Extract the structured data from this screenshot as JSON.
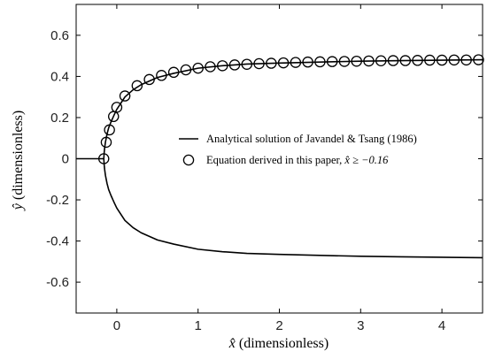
{
  "chart_data": {
    "type": "line",
    "title": "",
    "xlabel": {
      "symbol": "x̂",
      "text": " (dimensionless)"
    },
    "ylabel": {
      "symbol": "ŷ",
      "text": " (dimensionless)"
    },
    "xlim": [
      -0.5,
      4.5
    ],
    "ylim": [
      -0.75,
      0.75
    ],
    "x_ticks": [
      0,
      1,
      2,
      3,
      4
    ],
    "x_tick_labels": [
      "0",
      "1",
      "2",
      "3",
      "4"
    ],
    "y_ticks": [
      0.6,
      0.4,
      0.2,
      0,
      -0.2,
      -0.4,
      -0.6
    ],
    "y_tick_labels": [
      "0.6",
      "0.4",
      "0.2",
      "0",
      "-0.2",
      "-0.4",
      "-0.6"
    ],
    "grid": false,
    "legend_position": "right, middle",
    "series": [
      {
        "name": "Analytical solution of Javandel & Tsang (1986)",
        "style": "line",
        "color": "#000000",
        "branches": [
          {
            "x": [
              -0.5,
              -0.16
            ],
            "y": [
              0,
              0
            ]
          },
          {
            "x": [
              -0.16,
              -0.155,
              -0.15,
              -0.14,
              -0.12,
              -0.1,
              -0.07,
              -0.03,
              0.0,
              0.05,
              0.1,
              0.2,
              0.3,
              0.5,
              0.7,
              1.0,
              1.3,
              1.6,
              2.0,
              2.5,
              3.0,
              3.5,
              4.0,
              4.5
            ],
            "y": [
              0,
              0.03,
              0.05,
              0.08,
              0.12,
              0.15,
              0.18,
              0.215,
              0.24,
              0.27,
              0.3,
              0.335,
              0.36,
              0.395,
              0.415,
              0.44,
              0.452,
              0.46,
              0.465,
              0.47,
              0.474,
              0.477,
              0.479,
              0.481
            ]
          },
          {
            "x": [
              -0.16,
              -0.155,
              -0.15,
              -0.14,
              -0.12,
              -0.1,
              -0.07,
              -0.03,
              0.0,
              0.05,
              0.1,
              0.2,
              0.3,
              0.5,
              0.7,
              1.0,
              1.3,
              1.6,
              2.0,
              2.5,
              3.0,
              3.5,
              4.0,
              4.5
            ],
            "y": [
              0,
              -0.03,
              -0.05,
              -0.08,
              -0.12,
              -0.15,
              -0.18,
              -0.215,
              -0.24,
              -0.27,
              -0.3,
              -0.335,
              -0.36,
              -0.395,
              -0.415,
              -0.44,
              -0.452,
              -0.46,
              -0.465,
              -0.47,
              -0.474,
              -0.477,
              -0.479,
              -0.481
            ]
          }
        ]
      },
      {
        "name_parts": {
          "before": "Equation derived in this paper, ",
          "math": "x̂ ≥ −0.16"
        },
        "style": "marker",
        "marker": "open-circle",
        "color": "#000000",
        "x": [
          -0.16,
          -0.13,
          -0.09,
          -0.04,
          0.0,
          0.1,
          0.25,
          0.4,
          0.55,
          0.7,
          0.85,
          1.0,
          1.15,
          1.3,
          1.45,
          1.6,
          1.75,
          1.9,
          2.05,
          2.2,
          2.35,
          2.5,
          2.65,
          2.8,
          2.95,
          3.1,
          3.25,
          3.4,
          3.55,
          3.7,
          3.85,
          4.0,
          4.15,
          4.3,
          4.45
        ],
        "y": [
          0,
          0.08,
          0.14,
          0.205,
          0.25,
          0.305,
          0.355,
          0.385,
          0.405,
          0.42,
          0.432,
          0.44,
          0.447,
          0.452,
          0.456,
          0.459,
          0.462,
          0.464,
          0.466,
          0.468,
          0.47,
          0.471,
          0.472,
          0.473,
          0.474,
          0.475,
          0.476,
          0.477,
          0.477,
          0.478,
          0.479,
          0.479,
          0.48,
          0.48,
          0.481
        ]
      }
    ]
  }
}
